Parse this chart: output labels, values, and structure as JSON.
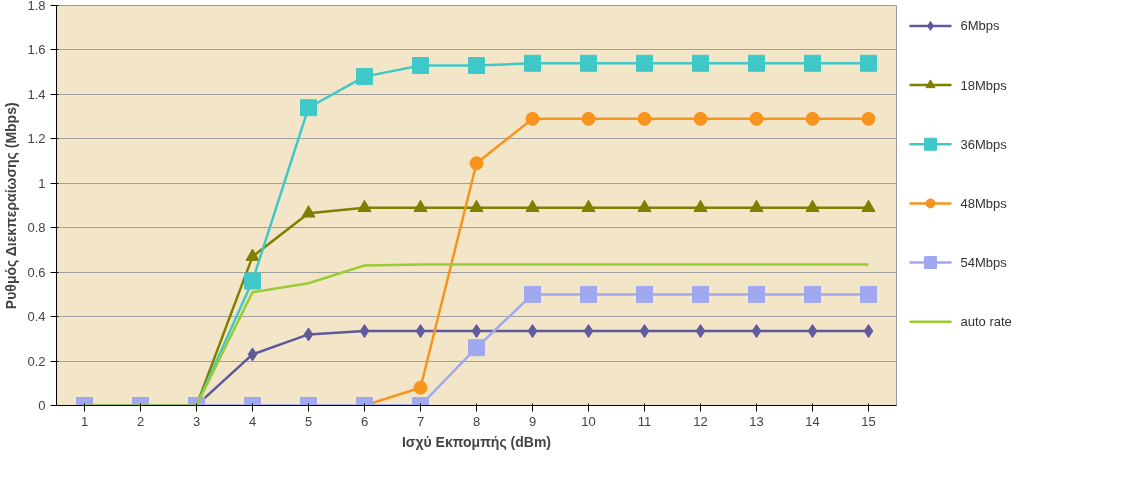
{
  "chart_data": {
    "type": "line",
    "xlabel": "Ισχύ Εκπομπής (dBm)",
    "ylabel": "Ρυθμός Διεκπεραίωσης (Mbps)",
    "x": [
      1,
      2,
      3,
      4,
      5,
      6,
      7,
      8,
      9,
      10,
      11,
      12,
      13,
      14,
      15
    ],
    "xlim": [
      0.5,
      15.5
    ],
    "xticks": [
      1,
      2,
      3,
      4,
      5,
      6,
      7,
      8,
      9,
      10,
      11,
      12,
      13,
      14,
      15
    ],
    "ylim": [
      0,
      1.8
    ],
    "yticks": [
      0,
      0.2,
      0.4,
      0.6,
      0.8,
      1,
      1.2,
      1.4,
      1.6,
      1.8
    ],
    "grid": "y",
    "legend": "right",
    "series": [
      {
        "name": "6Mbps",
        "color": "#5f5a9a",
        "marker": "diamond",
        "values": [
          0,
          0,
          0,
          0.23,
          0.32,
          0.335,
          0.335,
          0.335,
          0.335,
          0.335,
          0.335,
          0.335,
          0.335,
          0.335,
          0.335
        ]
      },
      {
        "name": "18Mbps",
        "color": "#7f7f00",
        "marker": "triangle",
        "values": [
          0,
          0,
          0,
          0.67,
          0.865,
          0.89,
          0.89,
          0.89,
          0.89,
          0.89,
          0.89,
          0.89,
          0.89,
          0.89,
          0.89
        ]
      },
      {
        "name": "36Mbps",
        "color": "#40c8c8",
        "marker": "square",
        "values": [
          0,
          0,
          0,
          0.56,
          1.34,
          1.48,
          1.53,
          1.53,
          1.54,
          1.54,
          1.54,
          1.54,
          1.54,
          1.54,
          1.54
        ]
      },
      {
        "name": "48Mbps",
        "color": "#f7941d",
        "marker": "circle",
        "values": [
          null,
          null,
          null,
          null,
          null,
          0,
          0.08,
          1.09,
          1.29,
          1.29,
          1.29,
          1.29,
          1.29,
          1.29,
          1.29
        ]
      },
      {
        "name": "54Mbps",
        "color": "#a0a8f0",
        "marker": "square",
        "values": [
          0,
          0,
          0,
          0,
          0,
          0,
          0,
          0.26,
          0.5,
          0.5,
          0.5,
          0.5,
          0.5,
          0.5,
          0.5
        ]
      },
      {
        "name": "auto rate",
        "color": "#99cc33",
        "marker": "none",
        "values": [
          0,
          0,
          0,
          0.51,
          0.55,
          0.63,
          0.635,
          0.635,
          0.635,
          0.635,
          0.635,
          0.635,
          0.635,
          0.635,
          0.635
        ]
      }
    ]
  }
}
